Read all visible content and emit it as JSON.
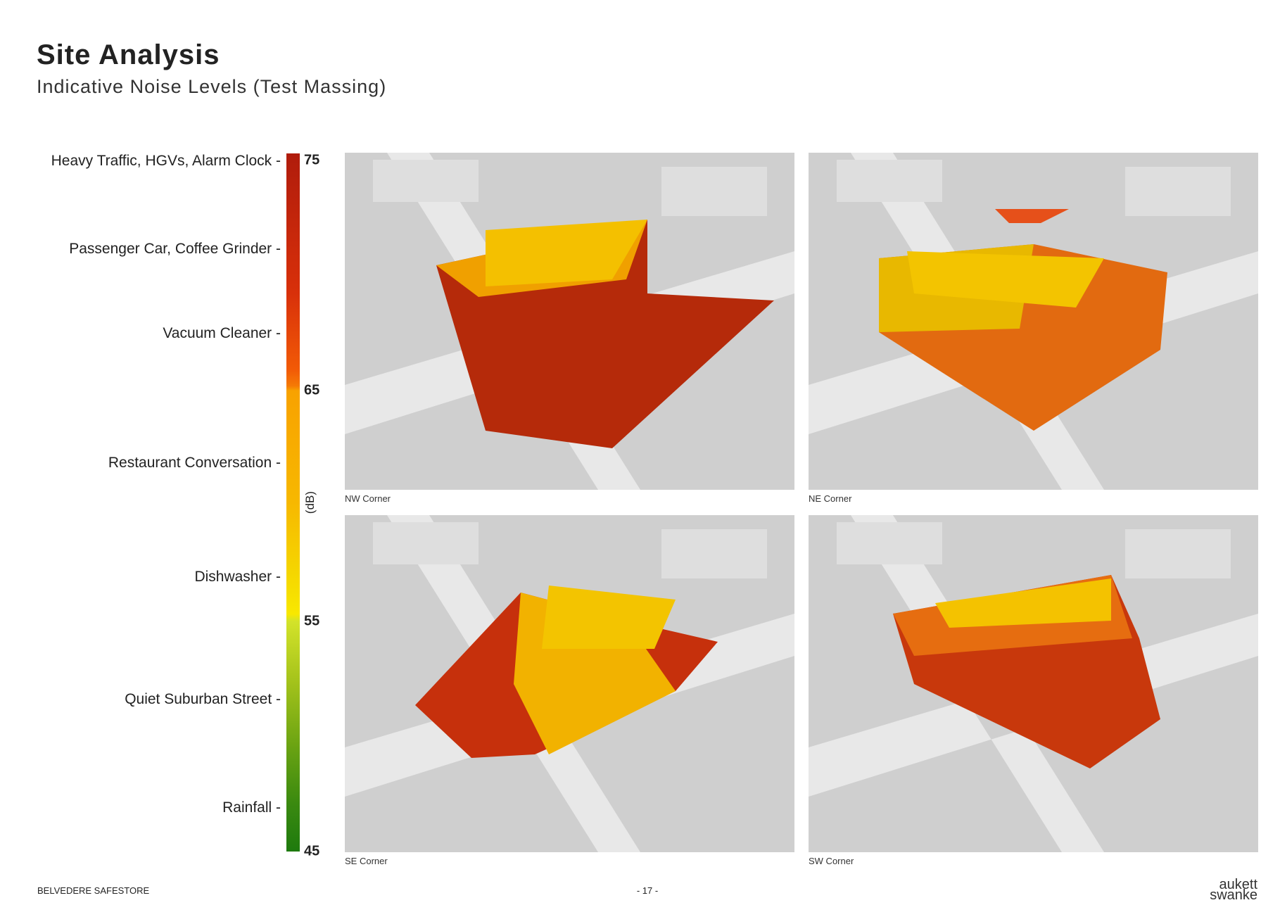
{
  "header": {
    "title": "Site Analysis",
    "subtitle": "Indicative Noise Levels (Test Massing)"
  },
  "legend": {
    "unit": "(dB)",
    "ticks": [
      75,
      65,
      55,
      45
    ],
    "labels": [
      "Heavy Traffic, HGVs, Alarm Clock -",
      "Passenger Car, Coffee Grinder -",
      "Vacuum Cleaner -",
      "Restaurant Conversation -",
      "Dishwasher -",
      "Quiet Suburban Street -",
      "Rainfall -"
    ]
  },
  "views": [
    {
      "caption": "NW Corner"
    },
    {
      "caption": "NE Corner"
    },
    {
      "caption": "SE Corner"
    },
    {
      "caption": "SW Corner"
    }
  ],
  "footer": {
    "project": "BELVEDERE SAFESTORE",
    "page": "- 17 -",
    "logo_top": "aukett",
    "logo_bottom": "swanke"
  }
}
